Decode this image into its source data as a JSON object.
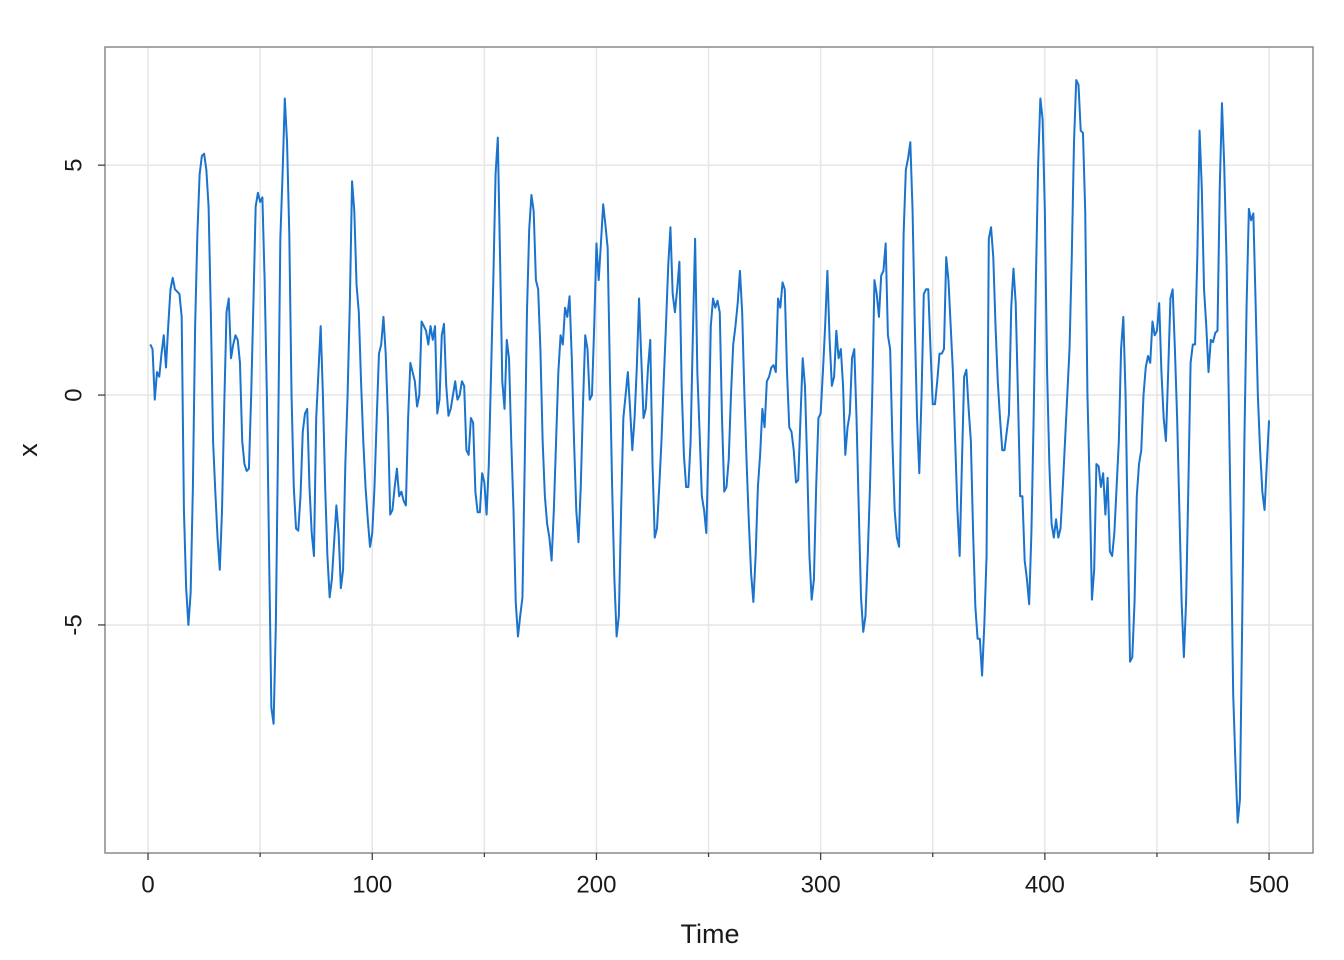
{
  "chart_data": {
    "type": "line",
    "xlabel": "Time",
    "ylabel": "x",
    "color": "#1a73cc",
    "grid": true,
    "xlim": [
      -19.2,
      519.6
    ],
    "ylim": [
      -9.96,
      7.57
    ],
    "xticks": [
      0,
      100,
      200,
      300,
      400,
      500
    ],
    "xminorticks": [
      50,
      150,
      250,
      350,
      450
    ],
    "yticks": [
      -5,
      0,
      5
    ],
    "x": [
      1,
      2,
      3,
      4,
      5,
      6,
      7,
      8,
      9,
      10,
      11,
      12,
      13,
      14,
      15,
      16,
      17,
      18,
      19,
      20,
      21,
      22,
      23,
      24,
      25,
      26,
      27,
      28,
      29,
      30,
      31,
      32,
      33,
      34,
      35,
      36,
      37,
      38,
      39,
      40,
      41,
      42,
      43,
      44,
      45,
      46,
      47,
      48,
      49,
      50,
      51,
      52,
      53,
      54,
      55,
      56,
      57,
      58,
      59,
      60,
      61,
      62,
      63,
      64,
      65,
      66,
      67,
      68,
      69,
      70,
      71,
      72,
      73,
      74,
      75,
      76,
      77,
      78,
      79,
      80,
      81,
      82,
      83,
      84,
      85,
      86,
      87,
      88,
      89,
      90,
      91,
      92,
      93,
      94,
      95,
      96,
      97,
      98,
      99,
      100,
      101,
      102,
      103,
      104,
      105,
      106,
      107,
      108,
      109,
      110,
      111,
      112,
      113,
      114,
      115,
      116,
      117,
      118,
      119,
      120,
      121,
      122,
      123,
      124,
      125,
      126,
      127,
      128,
      129,
      130,
      131,
      132,
      133,
      134,
      135,
      136,
      137,
      138,
      139,
      140,
      141,
      142,
      143,
      144,
      145,
      146,
      147,
      148,
      149,
      150,
      151,
      152,
      153,
      154,
      155,
      156,
      157,
      158,
      159,
      160,
      161,
      162,
      163,
      164,
      165,
      166,
      167,
      168,
      169,
      170,
      171,
      172,
      173,
      174,
      175,
      176,
      177,
      178,
      179,
      180,
      181,
      182,
      183,
      184,
      185,
      186,
      187,
      188,
      189,
      190,
      191,
      192,
      193,
      194,
      195,
      196,
      197,
      198,
      199,
      200,
      201,
      202,
      203,
      204,
      205,
      206,
      207,
      208,
      209,
      210,
      211,
      212,
      213,
      214,
      215,
      216,
      217,
      218,
      219,
      220,
      221,
      222,
      223,
      224,
      225,
      226,
      227,
      228,
      229,
      230,
      231,
      232,
      233,
      234,
      235,
      236,
      237,
      238,
      239,
      240,
      241,
      242,
      243,
      244,
      245,
      246,
      247,
      248,
      249,
      250,
      251,
      252,
      253,
      254,
      255,
      256,
      257,
      258,
      259,
      260,
      261,
      262,
      263,
      264,
      265,
      266,
      267,
      268,
      269,
      270,
      271,
      272,
      273,
      274,
      275,
      276,
      277,
      278,
      279,
      280,
      281,
      282,
      283,
      284,
      285,
      286,
      287,
      288,
      289,
      290,
      291,
      292,
      293,
      294,
      295,
      296,
      297,
      298,
      299,
      300,
      301,
      302,
      303,
      304,
      305,
      306,
      307,
      308,
      309,
      310,
      311,
      312,
      313,
      314,
      315,
      316,
      317,
      318,
      319,
      320,
      321,
      322,
      323,
      324,
      325,
      326,
      327,
      328,
      329,
      330,
      331,
      332,
      333,
      334,
      335,
      336,
      337,
      338,
      339,
      340,
      341,
      342,
      343,
      344,
      345,
      346,
      347,
      348,
      349,
      350,
      351,
      352,
      353,
      354,
      355,
      356,
      357,
      358,
      359,
      360,
      361,
      362,
      363,
      364,
      365,
      366,
      367,
      368,
      369,
      370,
      371,
      372,
      373,
      374,
      375,
      376,
      377,
      378,
      379,
      380,
      381,
      382,
      383,
      384,
      385,
      386,
      387,
      388,
      389,
      390,
      391,
      392,
      393,
      394,
      395,
      396,
      397,
      398,
      399,
      400,
      401,
      402,
      403,
      404,
      405,
      406,
      407,
      408,
      409,
      410,
      411,
      412,
      413,
      414,
      415,
      416,
      417,
      418,
      419,
      420,
      421,
      422,
      423,
      424,
      425,
      426,
      427,
      428,
      429,
      430,
      431,
      432,
      433,
      434,
      435,
      436,
      437,
      438,
      439,
      440,
      441,
      442,
      443,
      444,
      445,
      446,
      447,
      448,
      449,
      450,
      451,
      452,
      453,
      454,
      455,
      456,
      457,
      458,
      459,
      460,
      461,
      462,
      463,
      464,
      465,
      466,
      467,
      468,
      469,
      470,
      471,
      472,
      473,
      474,
      475,
      476,
      477,
      478,
      479,
      480,
      481,
      482,
      483,
      484,
      485,
      486,
      487,
      488,
      489,
      490,
      491,
      492,
      493,
      494,
      495,
      496,
      497,
      498,
      499,
      500
    ],
    "values": [
      1.1,
      1.0,
      -0.1,
      0.5,
      0.4,
      0.9,
      1.3,
      0.6,
      1.5,
      2.3,
      2.55,
      2.3,
      2.25,
      2.2,
      1.7,
      -2.5,
      -4.2,
      -5.0,
      -4.3,
      -2.0,
      1.5,
      3.5,
      4.8,
      5.2,
      5.25,
      4.9,
      4.1,
      1.8,
      -1.0,
      -2.1,
      -3.1,
      -3.8,
      -2.5,
      -0.2,
      1.8,
      2.1,
      0.8,
      1.1,
      1.3,
      1.2,
      0.7,
      -1.0,
      -1.5,
      -1.65,
      -1.6,
      0.0,
      2.0,
      4.1,
      4.4,
      4.2,
      4.3,
      2.5,
      0.0,
      -3.5,
      -6.8,
      -7.15,
      -5.0,
      -1.0,
      3.4,
      4.8,
      6.45,
      5.5,
      3.5,
      0.0,
      -2.0,
      -2.9,
      -2.95,
      -2.2,
      -0.8,
      -0.4,
      -0.3,
      -2.0,
      -3.0,
      -3.5,
      -0.5,
      0.5,
      1.5,
      0.0,
      -2.0,
      -3.5,
      -4.4,
      -4.0,
      -3.2,
      -2.4,
      -3.0,
      -4.2,
      -3.8,
      -1.5,
      0.0,
      2.0,
      4.65,
      4.0,
      2.4,
      1.8,
      0.3,
      -1.0,
      -2.0,
      -2.7,
      -3.3,
      -3.0,
      -2.0,
      -0.5,
      0.9,
      1.1,
      1.7,
      0.9,
      -0.5,
      -2.6,
      -2.5,
      -2.0,
      -1.6,
      -2.2,
      -2.1,
      -2.3,
      -2.4,
      -0.5,
      0.7,
      0.5,
      0.3,
      -0.25,
      0.0,
      1.6,
      1.5,
      1.4,
      1.1,
      1.5,
      1.2,
      1.5,
      -0.4,
      -0.1,
      1.3,
      1.55,
      0.2,
      -0.45,
      -0.3,
      0.0,
      0.3,
      -0.1,
      0.0,
      0.3,
      0.2,
      -1.2,
      -1.3,
      -0.5,
      -0.6,
      -2.1,
      -2.55,
      -2.55,
      -1.7,
      -1.9,
      -2.6,
      -1.5,
      0.5,
      2.5,
      4.8,
      5.6,
      3.0,
      0.3,
      -0.3,
      1.2,
      0.8,
      -1.0,
      -2.5,
      -4.5,
      -5.25,
      -4.8,
      -4.4,
      -1.5,
      1.8,
      3.6,
      4.35,
      4.0,
      2.5,
      2.3,
      1.0,
      -1.0,
      -2.2,
      -2.8,
      -3.1,
      -3.6,
      -2.5,
      -1.0,
      0.5,
      1.3,
      1.1,
      1.9,
      1.7,
      2.15,
      0.8,
      -1.0,
      -2.5,
      -3.2,
      -2.0,
      -0.2,
      1.3,
      1.0,
      -0.1,
      0.0,
      1.5,
      3.3,
      2.5,
      3.3,
      4.15,
      3.7,
      3.2,
      0.5,
      -2.0,
      -4.0,
      -5.25,
      -4.8,
      -2.5,
      -0.5,
      0.0,
      0.5,
      -0.3,
      -1.2,
      -0.5,
      0.6,
      2.1,
      0.8,
      -0.5,
      -0.3,
      0.6,
      1.2,
      -1.5,
      -3.1,
      -2.9,
      -2.0,
      -1.0,
      0.3,
      1.5,
      2.8,
      3.65,
      2.2,
      1.8,
      2.3,
      2.9,
      0.2,
      -1.3,
      -2.0,
      -2.0,
      -1.0,
      1.3,
      3.4,
      0.5,
      -0.8,
      -2.2,
      -2.5,
      -3.0,
      -1.0,
      1.5,
      2.1,
      1.9,
      2.05,
      1.8,
      -0.5,
      -2.1,
      -2.0,
      -1.4,
      0.0,
      1.1,
      1.5,
      2.0,
      2.7,
      1.8,
      0.0,
      -1.5,
      -2.8,
      -3.9,
      -4.5,
      -3.5,
      -2.0,
      -1.3,
      -0.3,
      -0.7,
      0.3,
      0.4,
      0.6,
      0.65,
      0.5,
      2.1,
      1.9,
      2.45,
      2.3,
      0.5,
      -0.7,
      -0.8,
      -1.2,
      -1.9,
      -1.85,
      -0.5,
      0.8,
      0.2,
      -1.5,
      -3.5,
      -4.45,
      -4.0,
      -2.0,
      -0.5,
      -0.4,
      0.5,
      1.5,
      2.7,
      1.2,
      0.2,
      0.4,
      1.4,
      0.8,
      1.0,
      0.2,
      -1.3,
      -0.7,
      -0.4,
      0.8,
      1.0,
      -0.5,
      -2.5,
      -4.4,
      -5.15,
      -4.8,
      -3.5,
      -2.0,
      0.0,
      2.5,
      2.2,
      1.7,
      2.6,
      2.7,
      3.3,
      1.3,
      1.0,
      -1.0,
      -2.5,
      -3.1,
      -3.3,
      0.0,
      3.5,
      4.9,
      5.15,
      5.5,
      4.0,
      1.5,
      -0.5,
      -1.7,
      0.0,
      2.2,
      2.3,
      2.3,
      1.0,
      -0.2,
      -0.2,
      0.3,
      0.9,
      0.9,
      1.0,
      3.0,
      2.5,
      1.5,
      0.5,
      -1.0,
      -2.5,
      -3.5,
      -1.5,
      0.4,
      0.55,
      -0.3,
      -1.0,
      -3.0,
      -4.6,
      -5.3,
      -5.3,
      -6.1,
      -5.0,
      -3.5,
      3.4,
      3.65,
      3.0,
      1.5,
      0.3,
      -0.5,
      -1.2,
      -1.2,
      -0.8,
      -0.4,
      1.9,
      2.75,
      2.0,
      0.0,
      -2.2,
      -2.2,
      -3.6,
      -4.0,
      -4.55,
      -3.0,
      -0.5,
      2.5,
      5.0,
      6.45,
      6.0,
      4.0,
      0.5,
      -1.5,
      -2.8,
      -3.1,
      -2.7,
      -3.1,
      -2.9,
      -2.0,
      -1.0,
      0.0,
      1.0,
      3.0,
      5.5,
      6.85,
      6.75,
      5.75,
      5.7,
      4.0,
      0.0,
      -2.0,
      -4.45,
      -3.8,
      -1.5,
      -1.55,
      -2.0,
      -1.7,
      -2.6,
      -1.8,
      -3.4,
      -3.5,
      -3.0,
      -2.0,
      -1.0,
      1.0,
      1.7,
      0.0,
      -3.0,
      -5.8,
      -5.7,
      -4.5,
      -2.2,
      -1.5,
      -1.2,
      0.0,
      0.6,
      0.85,
      0.7,
      1.6,
      1.3,
      1.4,
      2.0,
      0.5,
      -0.5,
      -1.0,
      0.5,
      2.1,
      2.3,
      1.0,
      -0.5,
      -2.5,
      -4.5,
      -5.7,
      -4.5,
      -2.0,
      0.7,
      1.1,
      1.1,
      3.0,
      5.75,
      4.5,
      2.3,
      1.5,
      0.5,
      1.2,
      1.15,
      1.35,
      1.4,
      4.5,
      6.35,
      5.0,
      3.0,
      0.0,
      -3.0,
      -6.5,
      -8.0,
      -9.3,
      -8.8,
      -5.0,
      -1.0,
      2.0,
      4.05,
      3.8,
      3.95,
      2.0,
      0.0,
      -1.2,
      -2.1,
      -2.5,
      -1.5,
      -0.55
    ]
  }
}
